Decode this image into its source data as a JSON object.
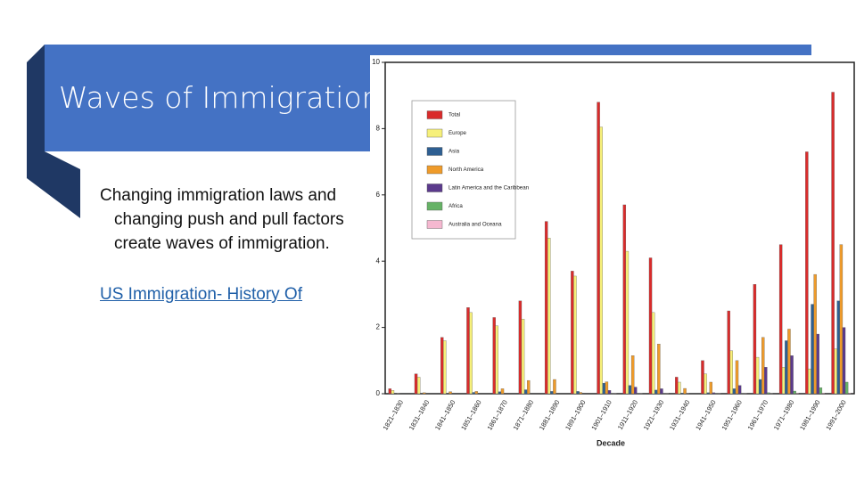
{
  "slide": {
    "title": "Waves of Immigration",
    "bullet": "Changing immigration laws and changing push and pull factors create waves of immigration.",
    "link": "US Immigration- History Of"
  },
  "chart_data": {
    "type": "bar",
    "x_label": "Decade",
    "categories": [
      "1821–1830",
      "1831–1840",
      "1841–1850",
      "1851–1860",
      "1861–1870",
      "1871–1880",
      "1881–1890",
      "1891–1900",
      "1901–1910",
      "1911–1920",
      "1921–1930",
      "1931–1940",
      "1941–1950",
      "1951–1960",
      "1961–1970",
      "1971–1980",
      "1981–1990",
      "1991–2000"
    ],
    "series": [
      {
        "name": "Total",
        "color": "#d92b2b",
        "values": [
          0.15,
          0.6,
          1.7,
          2.6,
          2.3,
          2.8,
          5.2,
          3.7,
          8.8,
          5.7,
          4.1,
          0.5,
          1.0,
          2.5,
          3.3,
          4.5,
          7.3,
          9.1
        ]
      },
      {
        "name": "Europe",
        "color": "#f6f07a",
        "values": [
          0.1,
          0.5,
          1.6,
          2.45,
          2.05,
          2.25,
          4.7,
          3.55,
          8.05,
          4.3,
          2.45,
          0.35,
          0.6,
          1.3,
          1.1,
          0.8,
          0.75,
          1.35
        ]
      },
      {
        "name": "Asia",
        "color": "#2e5f92",
        "values": [
          0,
          0,
          0,
          0.04,
          0.06,
          0.12,
          0.07,
          0.07,
          0.32,
          0.25,
          0.11,
          0.02,
          0.03,
          0.15,
          0.43,
          1.6,
          2.7,
          2.8
        ]
      },
      {
        "name": "North America",
        "color": "#ef9b2a",
        "values": [
          0.01,
          0.03,
          0.06,
          0.07,
          0.15,
          0.4,
          0.43,
          0.04,
          0.36,
          1.15,
          1.5,
          0.16,
          0.35,
          1.0,
          1.7,
          1.95,
          3.6,
          4.5
        ]
      },
      {
        "name": "Latin America and the Caribbean",
        "color": "#5b3a8c",
        "values": [
          0,
          0,
          0,
          0,
          0,
          0,
          0,
          0,
          0.1,
          0.2,
          0.15,
          0.01,
          0.03,
          0.25,
          0.8,
          1.15,
          1.8,
          2.0
        ]
      },
      {
        "name": "Africa",
        "color": "#66b266",
        "values": [
          0,
          0,
          0,
          0,
          0,
          0,
          0,
          0,
          0.01,
          0.01,
          0.01,
          0,
          0.01,
          0.01,
          0.03,
          0.08,
          0.18,
          0.35
        ]
      },
      {
        "name": "Australia and Oceana",
        "color": "#f5b8d0",
        "values": [
          0,
          0,
          0,
          0,
          0,
          0,
          0,
          0,
          0.01,
          0.01,
          0.01,
          0,
          0.01,
          0.01,
          0.01,
          0.02,
          0.02,
          0.02
        ]
      }
    ],
    "ylim": [
      0,
      10
    ],
    "yticks": [
      0,
      2,
      4,
      6,
      8,
      10
    ]
  }
}
